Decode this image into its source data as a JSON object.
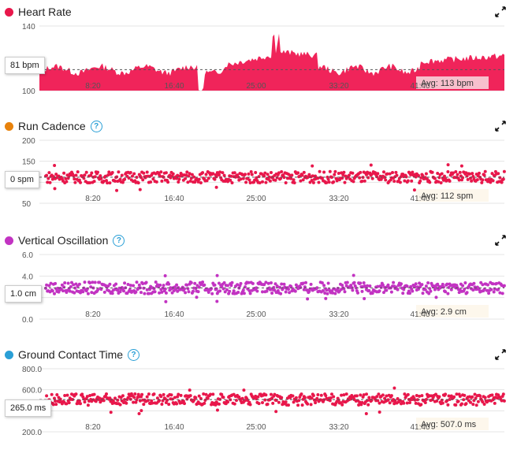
{
  "panels": [
    {
      "id": "heart-rate",
      "title": "Heart Rate",
      "dot_color": "#e8174b",
      "help": false,
      "type": "area",
      "y_ticks": [
        "140",
        "100"
      ],
      "y_range": [
        100,
        140
      ],
      "x_ticks": [
        "8:20",
        "16:40",
        "25:00",
        "33:20",
        "41:40"
      ],
      "cursor_value": "81 bpm",
      "avg_label": "Avg: 113 bpm",
      "avg_value": 113,
      "series_color": "#f0245a"
    },
    {
      "id": "run-cadence",
      "title": "Run Cadence",
      "dot_color": "#e8820c",
      "help": true,
      "type": "scatter",
      "y_ticks": [
        "200",
        "150",
        "50"
      ],
      "y_range": [
        50,
        200
      ],
      "x_ticks": [
        "8:20",
        "16:40",
        "25:00",
        "33:20",
        "41:40"
      ],
      "cursor_value": "0 spm",
      "avg_label": "Avg: 112 spm",
      "avg_value": 112,
      "series_color": "#e8174b"
    },
    {
      "id": "vertical-oscillation",
      "title": "Vertical Oscillation",
      "dot_color": "#c233c2",
      "help": true,
      "type": "scatter",
      "y_ticks": [
        "6.0",
        "4.0",
        "0.0"
      ],
      "y_range": [
        0,
        6
      ],
      "x_ticks": [
        "8:20",
        "16:40",
        "25:00",
        "33:20",
        "41:40"
      ],
      "cursor_value": "1.0 cm",
      "avg_label": "Avg: 2.9 cm",
      "avg_value": 2.9,
      "series_color": "#c233c2"
    },
    {
      "id": "ground-contact-time",
      "title": "Ground Contact Time",
      "dot_color": "#2a9fd6",
      "help": true,
      "type": "scatter",
      "y_ticks": [
        "800.0",
        "600.0",
        "200.0"
      ],
      "y_range": [
        200,
        800
      ],
      "x_ticks": [
        "8:20",
        "16:40",
        "25:00",
        "33:20",
        "41:40"
      ],
      "cursor_value": "265.0 ms",
      "avg_label": "Avg: 507.0 ms",
      "avg_value": 507,
      "series_color": "#e8174b"
    }
  ],
  "icons": {
    "help": "question-circle-icon",
    "expand": "expand-arrows-icon"
  },
  "help_symbol": "?"
}
